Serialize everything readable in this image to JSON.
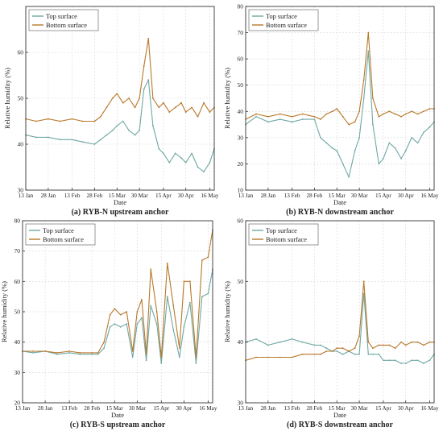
{
  "colors": {
    "top": "#6fa8a4",
    "bottom": "#b8782a",
    "grid": "#d8d8d8",
    "axis": "#333333"
  },
  "xtick_labels": [
    "13 Jan",
    "28 Jan",
    "13 Feb",
    "28 Feb",
    "15 Mar",
    "30 Mar",
    "15 Apr",
    "30 Apr",
    "16 May"
  ],
  "chart_data": [
    {
      "type": "line",
      "caption": "(a) RYB-N upstream anchor",
      "xlabel": "Date",
      "ylabel": "Relative humidity (%)",
      "ylim": [
        30,
        70
      ],
      "yticks": [
        30,
        40,
        50,
        60
      ],
      "legend": {
        "position": "top-left",
        "entries": [
          "Top surface",
          "Bottom surface"
        ]
      },
      "x": [
        "13 Jan",
        "20 Jan",
        "28 Jan",
        "5 Feb",
        "13 Feb",
        "20 Feb",
        "28 Feb",
        "4 Mar",
        "8 Mar",
        "12 Mar",
        "15 Mar",
        "19 Mar",
        "23 Mar",
        "27 Mar",
        "30 Mar",
        "2 Apr",
        "5 Apr",
        "8 Apr",
        "12 Apr",
        "15 Apr",
        "19 Apr",
        "23 Apr",
        "27 Apr",
        "30 Apr",
        "4 May",
        "8 May",
        "12 May",
        "16 May",
        "19 May"
      ],
      "series": [
        {
          "name": "Top surface",
          "values": [
            42,
            41.5,
            41.5,
            41,
            41,
            40.5,
            40,
            41,
            42,
            43,
            44,
            45,
            43,
            42,
            43,
            52,
            54,
            44,
            39,
            38,
            36,
            38,
            37,
            36,
            38,
            35,
            34,
            36,
            39
          ]
        },
        {
          "name": "Bottom surface",
          "values": [
            45.5,
            45,
            45.5,
            45,
            45.5,
            45,
            45,
            46,
            48,
            50,
            51,
            49,
            50,
            48,
            50,
            57,
            63,
            50,
            48,
            49,
            47,
            48,
            49,
            47,
            48,
            46,
            49,
            47,
            48
          ]
        }
      ]
    },
    {
      "type": "line",
      "caption": "(b) RYB-N downstream anchor",
      "xlabel": "Date",
      "ylabel": "Relative humidity (%)",
      "ylim": [
        10,
        80
      ],
      "yticks": [
        10,
        20,
        30,
        40,
        50,
        60,
        70,
        80
      ],
      "legend": {
        "position": "top-left",
        "entries": [
          "Top surface",
          "Bottom surface"
        ]
      },
      "x": [
        "13 Jan",
        "20 Jan",
        "28 Jan",
        "5 Feb",
        "13 Feb",
        "20 Feb",
        "28 Feb",
        "4 Mar",
        "8 Mar",
        "12 Mar",
        "15 Mar",
        "19 Mar",
        "23 Mar",
        "27 Mar",
        "30 Mar",
        "2 Apr",
        "5 Apr",
        "8 Apr",
        "12 Apr",
        "15 Apr",
        "19 Apr",
        "23 Apr",
        "27 Apr",
        "30 Apr",
        "4 May",
        "8 May",
        "12 May",
        "16 May",
        "19 May"
      ],
      "series": [
        {
          "name": "Top surface",
          "values": [
            35,
            38,
            36,
            37,
            36,
            37,
            37,
            30,
            28,
            26,
            25,
            20,
            15,
            25,
            30,
            45,
            63,
            35,
            20,
            22,
            28,
            26,
            22,
            25,
            30,
            28,
            32,
            34,
            36
          ]
        },
        {
          "name": "Bottom surface",
          "values": [
            37,
            39,
            38,
            39,
            38,
            39,
            38,
            37,
            39,
            40,
            41,
            38,
            35,
            36,
            40,
            52,
            70,
            45,
            38,
            39,
            40,
            39,
            38,
            39,
            40,
            39,
            40,
            41,
            41
          ]
        }
      ]
    },
    {
      "type": "line",
      "caption": "(c) RYB-S upstream anchor",
      "xlabel": "Date",
      "ylabel": "Relative humidity (%)",
      "ylim": [
        20,
        80
      ],
      "yticks": [
        20,
        30,
        40,
        50,
        60,
        70,
        80
      ],
      "legend": {
        "position": "top-left",
        "entries": [
          "Top surface",
          "Bottom surface"
        ]
      },
      "x": [
        "13 Jan",
        "20 Jan",
        "28 Jan",
        "5 Feb",
        "13 Feb",
        "20 Feb",
        "28 Feb",
        "4 Mar",
        "8 Mar",
        "12 Mar",
        "15 Mar",
        "19 Mar",
        "23 Mar",
        "27 Mar",
        "30 Mar",
        "2 Apr",
        "5 Apr",
        "8 Apr",
        "12 Apr",
        "15 Apr",
        "19 Apr",
        "23 Apr",
        "27 Apr",
        "30 Apr",
        "4 May",
        "8 May",
        "12 May",
        "16 May",
        "19 May"
      ],
      "series": [
        {
          "name": "Top surface",
          "values": [
            37,
            36.5,
            37,
            36,
            36.5,
            36,
            36,
            36,
            38,
            45,
            46,
            45,
            46,
            35,
            46,
            48,
            34,
            52,
            46,
            33,
            55,
            44,
            35,
            45,
            53,
            33,
            55,
            56,
            64
          ]
        },
        {
          "name": "Bottom surface",
          "values": [
            37,
            37,
            37,
            36.5,
            37,
            36.5,
            36.5,
            36.5,
            40,
            49,
            51,
            49,
            50,
            37,
            50,
            54,
            36,
            64,
            50,
            35,
            66,
            52,
            38,
            60,
            60,
            35,
            67,
            68,
            77
          ]
        }
      ]
    },
    {
      "type": "line",
      "caption": "(d) RYB-S downstream anchor",
      "xlabel": "Date",
      "ylabel": "Relative humidity (%)",
      "ylim": [
        30,
        60
      ],
      "yticks": [
        30,
        40,
        50,
        60
      ],
      "legend": {
        "position": "top-left",
        "entries": [
          "Top surface",
          "Bottom surface"
        ]
      },
      "x": [
        "13 Jan",
        "20 Jan",
        "28 Jan",
        "5 Feb",
        "13 Feb",
        "20 Feb",
        "28 Feb",
        "4 Mar",
        "8 Mar",
        "12 Mar",
        "15 Mar",
        "19 Mar",
        "23 Mar",
        "27 Mar",
        "30 Mar",
        "2 Apr",
        "5 Apr",
        "8 Apr",
        "12 Apr",
        "15 Apr",
        "19 Apr",
        "23 Apr",
        "27 Apr",
        "30 Apr",
        "4 May",
        "8 May",
        "12 May",
        "16 May",
        "19 May"
      ],
      "series": [
        {
          "name": "Top surface",
          "values": [
            40,
            40.5,
            39.5,
            40,
            40.5,
            40,
            39.5,
            39.5,
            39,
            38.5,
            38.5,
            38,
            38.5,
            38,
            38,
            48,
            38,
            38,
            38,
            37,
            37,
            37,
            36.5,
            36.5,
            37,
            37,
            36.5,
            37,
            38
          ]
        },
        {
          "name": "Bottom surface",
          "values": [
            37,
            37.5,
            37.5,
            37.5,
            37.5,
            38,
            38,
            38,
            38.5,
            38.5,
            39,
            39,
            38.5,
            39,
            41,
            50,
            40,
            39,
            39.5,
            39.5,
            39.5,
            39,
            40,
            39.5,
            40,
            40,
            39.5,
            40,
            40
          ]
        }
      ]
    }
  ]
}
